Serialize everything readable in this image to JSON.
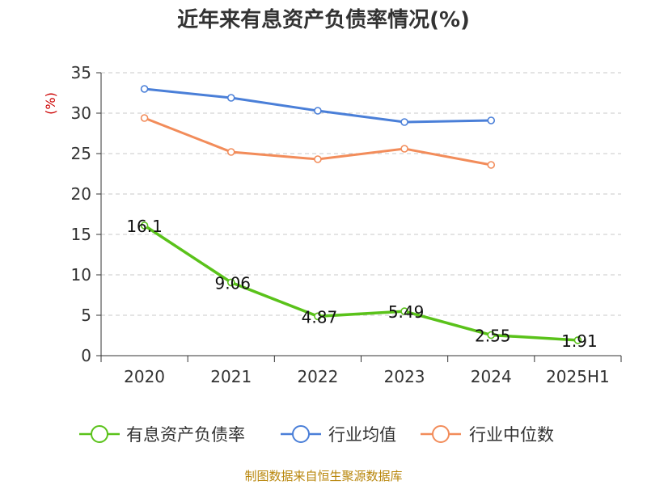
{
  "title": "近年来有息资产负债率情况(%)",
  "source": "制图数据来自恒生聚源数据库",
  "chart_data": {
    "type": "line",
    "categories": [
      "2020",
      "2021",
      "2022",
      "2023",
      "2024",
      "2025H1"
    ],
    "ylabel": "(%)",
    "ylim": [
      0,
      35
    ],
    "yticks": [
      "0",
      "5",
      "10",
      "15",
      "20",
      "25",
      "30",
      "35"
    ],
    "grid": true,
    "legend_position": "bottom",
    "series": [
      {
        "name": "有息资产负债率",
        "color": "#5ac21a",
        "values": [
          16.1,
          9.06,
          4.87,
          5.49,
          2.55,
          1.91
        ],
        "labels": [
          "16.1",
          "9.06",
          "4.87",
          "5.49",
          "2.55",
          "1.91"
        ]
      },
      {
        "name": "行业均值",
        "color": "#4a7fd8",
        "values": [
          33.0,
          31.9,
          30.3,
          28.9,
          29.1,
          null
        ]
      },
      {
        "name": "行业中位数",
        "color": "#f28c5a",
        "values": [
          29.4,
          25.2,
          24.3,
          25.6,
          23.6,
          null
        ]
      }
    ]
  }
}
